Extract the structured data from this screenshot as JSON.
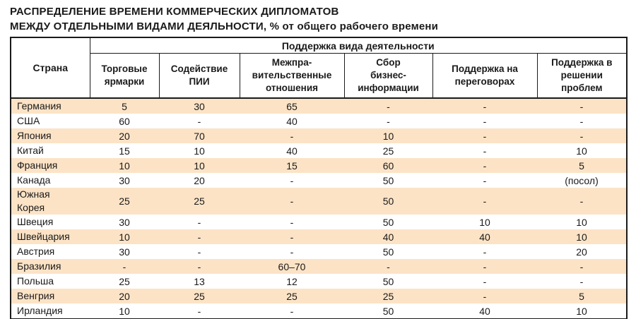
{
  "title": {
    "line1": "РАСПРЕДЕЛЕНИЕ ВРЕМЕНИ КОММЕРЧЕСКИХ ДИПЛОМАТОВ",
    "line2_caps": "МЕЖДУ ОТДЕЛЬНЫМИ ВИДАМИ ДЕЯЛЬНОСТИ,",
    "line2_rest": " % от общего рабочего времени"
  },
  "table": {
    "corner_header": "Страна",
    "group_header": "Поддержка вида деятельности",
    "columns": [
      "Торговые\nярмарки",
      "Содействие\nПИИ",
      "Межпра-\nвительственные\nотношения",
      "Сбор\nбизнес-\nинформации",
      "Поддержка на\nпереговорах",
      "Поддержка в\nрешении\nпроблем"
    ],
    "rows": [
      {
        "country": "Германия",
        "values": [
          "5",
          "30",
          "65",
          "-",
          "-",
          "-"
        ]
      },
      {
        "country": "США",
        "values": [
          "60",
          "-",
          "40",
          "-",
          "-",
          "-"
        ]
      },
      {
        "country": "Япония",
        "values": [
          "20",
          "70",
          "-",
          "10",
          "-",
          "-"
        ]
      },
      {
        "country": "Китай",
        "values": [
          "15",
          "10",
          "40",
          "25",
          "-",
          "10"
        ]
      },
      {
        "country": "Франция",
        "values": [
          "10",
          "10",
          "15",
          "60",
          "-",
          "5"
        ]
      },
      {
        "country": "Канада",
        "values": [
          "30",
          "20",
          "-",
          "50",
          "-",
          "(посол)"
        ]
      },
      {
        "country": "Южная\nКорея",
        "values": [
          "25",
          "25",
          "-",
          "50",
          "-",
          "-"
        ]
      },
      {
        "country": "Швеция",
        "values": [
          "30",
          "-",
          "-",
          "50",
          "10",
          "10"
        ]
      },
      {
        "country": "Швейцария",
        "values": [
          "10",
          "-",
          "-",
          "40",
          "40",
          "10"
        ]
      },
      {
        "country": "Австрия",
        "values": [
          "30",
          "-",
          "-",
          "50",
          "-",
          "20"
        ]
      },
      {
        "country": "Бразилия",
        "values": [
          "-",
          "-",
          "60–70",
          "-",
          "-",
          "-"
        ]
      },
      {
        "country": "Польша",
        "values": [
          "25",
          "13",
          "12",
          "50",
          "-",
          "-"
        ]
      },
      {
        "country": "Венгрия",
        "values": [
          "20",
          "25",
          "25",
          "25",
          "-",
          "5"
        ]
      },
      {
        "country": "Ирландия",
        "values": [
          "10",
          "-",
          "-",
          "50",
          "40",
          "10"
        ]
      }
    ]
  },
  "colors": {
    "stripe": "#fce3c6",
    "text": "#1a1a1a",
    "border": "#1a1a1a"
  }
}
